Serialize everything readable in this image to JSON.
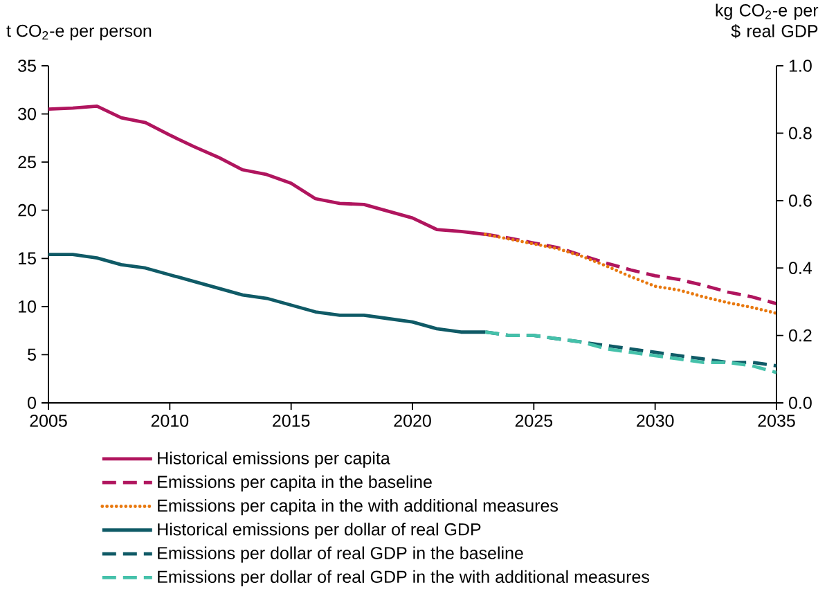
{
  "chart_data": {
    "type": "line",
    "ylabel": "t CO$_{2}$-e per person",
    "y2label": "kg CO$_{2}$-e per $ real GDP",
    "xlim": [
      2005,
      2035
    ],
    "xticks": [
      2005,
      2010,
      2015,
      2020,
      2025,
      2030,
      2035
    ],
    "ylim": [
      0,
      35
    ],
    "yticks": [
      0,
      5,
      10,
      15,
      20,
      25,
      30,
      35
    ],
    "y2lim": [
      0,
      1
    ],
    "y2ticks": [
      {
        "value": 0,
        "label": "0.0"
      },
      {
        "value": 0.2,
        "label": "0.2"
      },
      {
        "value": 0.4,
        "label": "0.4"
      },
      {
        "value": 0.6,
        "label": "0.6"
      },
      {
        "value": 0.8,
        "label": "0.8"
      },
      {
        "value": 1,
        "label": "1.0"
      }
    ],
    "legend": "bottom",
    "grid": false,
    "marker": "none",
    "series": [
      {
        "name": "Historical emissions per capita",
        "color": "#b0155e",
        "line_style": "solid",
        "x": [
          2005,
          2006,
          2007,
          2008,
          2009,
          2010,
          2011,
          2012,
          2013,
          2014,
          2015,
          2016,
          2017,
          2018,
          2019,
          2020,
          2021,
          2022,
          2023
        ],
        "values": [
          30.5,
          30.6,
          30.8,
          29.6,
          29.1,
          27.8,
          26.6,
          25.5,
          24.2,
          23.7,
          22.8,
          21.2,
          20.7,
          20.6,
          19.9,
          19.2,
          18.0,
          17.8,
          17.5
        ]
      },
      {
        "name": "Emissions per capita in the baseline",
        "color": "#b0155e",
        "line_style": "dashed",
        "x": [
          2023,
          2024,
          2025,
          2026,
          2027,
          2028,
          2029,
          2030,
          2031,
          2032,
          2033,
          2034,
          2035
        ],
        "values": [
          17.5,
          17.1,
          16.6,
          16.1,
          15.3,
          14.5,
          13.8,
          13.2,
          12.8,
          12.2,
          11.5,
          11.0,
          10.3
        ]
      },
      {
        "name": "Emissions per capita in the with additional measures",
        "color": "#e8780e",
        "line_style": "dotted",
        "x": [
          2023,
          2024,
          2025,
          2026,
          2027,
          2028,
          2029,
          2030,
          2031,
          2032,
          2033,
          2034,
          2035
        ],
        "values": [
          17.5,
          17.0,
          16.5,
          16.0,
          15.2,
          14.2,
          13.1,
          12.1,
          11.7,
          11.0,
          10.4,
          9.9,
          9.3
        ]
      },
      {
        "name": "Historical emissions per dollar of real GDP",
        "color": "#0f5a66",
        "line_style": "solid",
        "axis": "y2",
        "x": [
          2005,
          2006,
          2007,
          2008,
          2009,
          2010,
          2011,
          2012,
          2013,
          2014,
          2015,
          2016,
          2017,
          2018,
          2019,
          2020,
          2021,
          2022,
          2023
        ],
        "values": [
          0.44,
          0.44,
          0.43,
          0.41,
          0.4,
          0.38,
          0.36,
          0.34,
          0.32,
          0.31,
          0.29,
          0.27,
          0.26,
          0.26,
          0.25,
          0.24,
          0.22,
          0.21,
          0.21
        ]
      },
      {
        "name": "Emissions per dollar of real GDP in the baseline",
        "color": "#0f5a66",
        "line_style": "dashed",
        "axis": "y2",
        "x": [
          2023,
          2024,
          2025,
          2026,
          2027,
          2028,
          2029,
          2030,
          2031,
          2032,
          2033,
          2034,
          2035
        ],
        "values": [
          0.21,
          0.2,
          0.2,
          0.19,
          0.18,
          0.17,
          0.16,
          0.15,
          0.14,
          0.13,
          0.12,
          0.12,
          0.11
        ]
      },
      {
        "name": "Emissions per dollar of real GDP in the with additional measures",
        "color": "#45c1aa",
        "line_style": "dashed",
        "axis": "y2",
        "x": [
          2023,
          2024,
          2025,
          2026,
          2027,
          2028,
          2029,
          2030,
          2031,
          2032,
          2033,
          2034,
          2035
        ],
        "values": [
          0.21,
          0.2,
          0.2,
          0.19,
          0.18,
          0.16,
          0.15,
          0.14,
          0.13,
          0.12,
          0.12,
          0.11,
          0.09
        ]
      }
    ]
  }
}
